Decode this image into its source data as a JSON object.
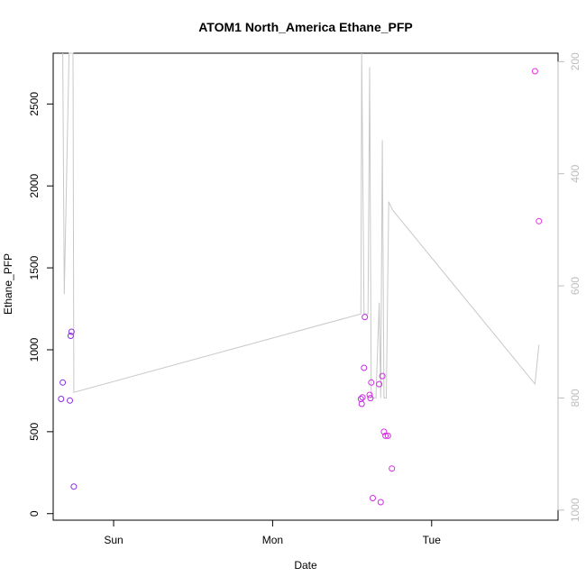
{
  "chart_data": {
    "type": "scatter",
    "title": "ATOM1 North_America Ethane_PFP",
    "xlabel": "Date",
    "ylabel": "Ethane_PFP",
    "x_ticks": [
      {
        "label": "Sun",
        "value": 1.0
      },
      {
        "label": "Mon",
        "value": 2.0
      },
      {
        "label": "Tue",
        "value": 3.0
      }
    ],
    "xlim": [
      0.62,
      3.795
    ],
    "ylim": [
      -40,
      2810
    ],
    "y_ticks": [
      0,
      500,
      1000,
      1500,
      2000,
      2500
    ],
    "y2lim": [
      1018,
      185
    ],
    "y2_ticks": [
      200,
      400,
      600,
      800,
      1000
    ],
    "grid": false,
    "colors": {
      "axis": "#000000",
      "line": "#c8c8c8",
      "right_axis": "#bdbdbd",
      "points_early": "#8a2be2",
      "points_late": "#e62ee6"
    },
    "points": [
      {
        "x": 0.67,
        "y": 700,
        "color": "#8a2be2"
      },
      {
        "x": 0.68,
        "y": 800,
        "color": "#8a2be2"
      },
      {
        "x": 0.725,
        "y": 690,
        "color": "#8a2be2"
      },
      {
        "x": 0.73,
        "y": 1085,
        "color": "#8a2be2"
      },
      {
        "x": 0.735,
        "y": 1110,
        "color": "#8a2be2"
      },
      {
        "x": 0.75,
        "y": 165,
        "color": "#8a2be2"
      },
      {
        "x": 2.555,
        "y": 700,
        "color": "#c42be2"
      },
      {
        "x": 2.56,
        "y": 670,
        "color": "#c42be2"
      },
      {
        "x": 2.565,
        "y": 710,
        "color": "#c42be2"
      },
      {
        "x": 2.575,
        "y": 890,
        "color": "#c42be2"
      },
      {
        "x": 2.58,
        "y": 1200,
        "color": "#c42be2"
      },
      {
        "x": 2.61,
        "y": 725,
        "color": "#d02be2"
      },
      {
        "x": 2.615,
        "y": 705,
        "color": "#d02be2"
      },
      {
        "x": 2.62,
        "y": 800,
        "color": "#d02be2"
      },
      {
        "x": 2.63,
        "y": 95,
        "color": "#d02be2"
      },
      {
        "x": 2.67,
        "y": 790,
        "color": "#d02be2"
      },
      {
        "x": 2.68,
        "y": 70,
        "color": "#d02be2"
      },
      {
        "x": 2.69,
        "y": 840,
        "color": "#d02be2"
      },
      {
        "x": 2.7,
        "y": 500,
        "color": "#d62be2"
      },
      {
        "x": 2.71,
        "y": 475,
        "color": "#d62be2"
      },
      {
        "x": 2.725,
        "y": 475,
        "color": "#d62be2"
      },
      {
        "x": 2.75,
        "y": 275,
        "color": "#d62be2"
      },
      {
        "x": 3.65,
        "y": 2700,
        "color": "#e62ee6"
      },
      {
        "x": 3.675,
        "y": 1785,
        "color": "#e62ee6"
      }
    ],
    "right_axis_series": {
      "name": "",
      "x": [
        0.68,
        0.69,
        0.72,
        0.73,
        0.745,
        0.75,
        2.555,
        2.56,
        2.575,
        2.6,
        2.61,
        2.62,
        2.65,
        2.67,
        2.68,
        2.69,
        2.7,
        2.715,
        2.73,
        2.755,
        3.65,
        3.675
      ],
      "y": [
        185,
        615,
        185,
        185,
        185,
        790,
        650,
        185,
        650,
        650,
        210,
        800,
        800,
        630,
        800,
        340,
        800,
        800,
        450,
        465,
        775,
        705
      ]
    }
  }
}
